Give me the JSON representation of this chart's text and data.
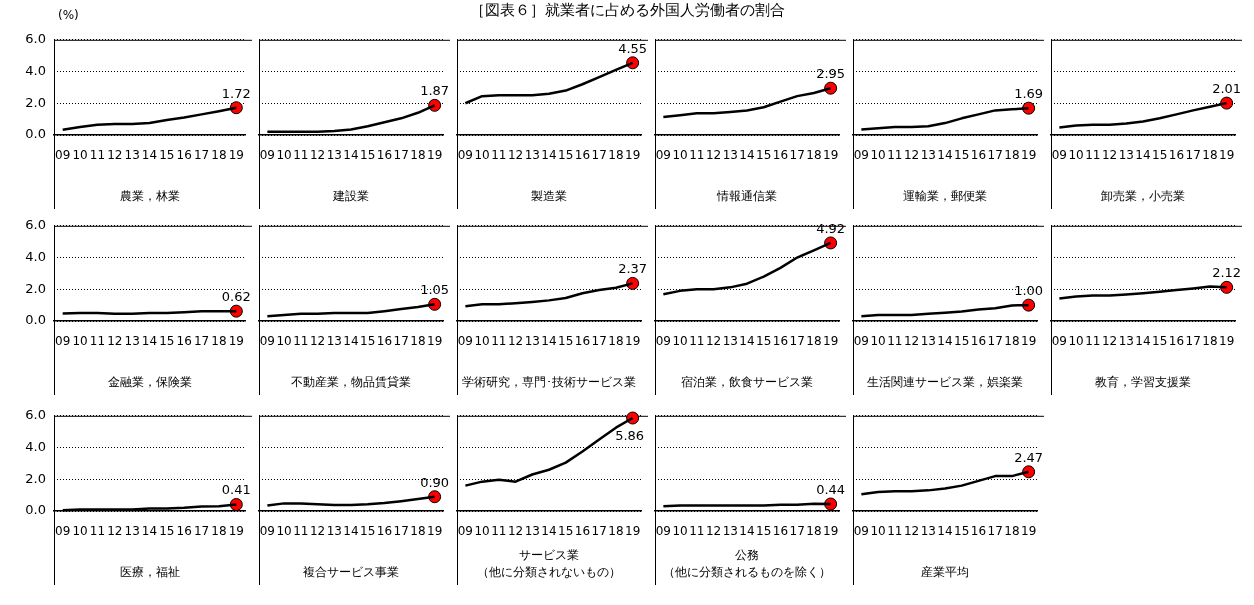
{
  "chart_data": [
    {
      "type": "line",
      "ylabel": "(%)",
      "xlabel": "農業，林業",
      "categories": [
        "09",
        "10",
        "11",
        "12",
        "13",
        "14",
        "15",
        "16",
        "17",
        "18",
        "19"
      ],
      "ylim": [
        0,
        6
      ],
      "yticks": [
        {
          "value": 0,
          "label": "0.0"
        },
        {
          "value": 2,
          "label": "2.0"
        },
        {
          "value": 4,
          "label": "4.0"
        },
        {
          "value": 6,
          "label": "6.0"
        }
      ],
      "grid": "y",
      "series": [
        {
          "type": "line",
          "color": "#000000",
          "marker": "none",
          "values": [
            0.33,
            0.5,
            0.65,
            0.7,
            0.7,
            0.75,
            0.95,
            1.1,
            1.3,
            1.5,
            1.72
          ]
        },
        {
          "type": "scatter",
          "color": "#ff0000",
          "marker": "circle",
          "x": [
            "19"
          ],
          "values": [
            1.72
          ],
          "value_labels": [
            "1.72"
          ]
        }
      ]
    },
    {
      "type": "line",
      "xlabel": "建設業",
      "categories": [
        "09",
        "10",
        "11",
        "12",
        "13",
        "14",
        "15",
        "16",
        "17",
        "18",
        "19"
      ],
      "ylim": [
        0,
        6
      ],
      "yticks": [
        {
          "value": 0,
          "label": null
        },
        {
          "value": 2,
          "label": null
        },
        {
          "value": 4,
          "label": null
        },
        {
          "value": 6,
          "label": null
        }
      ],
      "grid": "y",
      "tick_labels": "x",
      "series": [
        {
          "type": "line",
          "color": "#000000",
          "marker": "none",
          "values": [
            0.2,
            0.2,
            0.2,
            0.2,
            0.25,
            0.35,
            0.55,
            0.8,
            1.05,
            1.4,
            1.87
          ]
        },
        {
          "type": "scatter",
          "color": "#ff0000",
          "marker": "circle",
          "x": [
            "19"
          ],
          "values": [
            1.87
          ],
          "value_labels": [
            "1.87"
          ]
        }
      ]
    },
    {
      "type": "line",
      "title": "［図表６］就業者に占める外国人労働者の割合",
      "xlabel": "製造業",
      "categories": [
        "09",
        "10",
        "11",
        "12",
        "13",
        "14",
        "15",
        "16",
        "17",
        "18",
        "19"
      ],
      "ylim": [
        0,
        6
      ],
      "yticks": [
        {
          "value": 0,
          "label": null
        },
        {
          "value": 2,
          "label": null
        },
        {
          "value": 4,
          "label": null
        },
        {
          "value": 6,
          "label": null
        }
      ],
      "grid": "y",
      "tick_labels": "x",
      "series": [
        {
          "type": "line",
          "color": "#000000",
          "marker": "none",
          "values": [
            2.0,
            2.45,
            2.5,
            2.5,
            2.5,
            2.6,
            2.8,
            3.2,
            3.65,
            4.1,
            4.55
          ]
        },
        {
          "type": "scatter",
          "color": "#ff0000",
          "marker": "circle",
          "x": [
            "19"
          ],
          "values": [
            4.55
          ],
          "value_labels": [
            "4.55"
          ]
        }
      ]
    },
    {
      "type": "line",
      "xlabel": "情報通信業",
      "categories": [
        "09",
        "10",
        "11",
        "12",
        "13",
        "14",
        "15",
        "16",
        "17",
        "18",
        "19"
      ],
      "ylim": [
        0,
        6
      ],
      "yticks": [
        {
          "value": 0,
          "label": null
        },
        {
          "value": 2,
          "label": null
        },
        {
          "value": 4,
          "label": null
        },
        {
          "value": 6,
          "label": null
        }
      ],
      "grid": "y",
      "tick_labels": "x",
      "series": [
        {
          "type": "line",
          "color": "#000000",
          "marker": "none",
          "values": [
            1.14,
            1.25,
            1.37,
            1.37,
            1.45,
            1.55,
            1.75,
            2.1,
            2.45,
            2.65,
            2.95
          ]
        },
        {
          "type": "scatter",
          "color": "#ff0000",
          "marker": "circle",
          "x": [
            "19"
          ],
          "values": [
            2.95
          ],
          "value_labels": [
            "2.95"
          ]
        }
      ]
    },
    {
      "type": "line",
      "xlabel": "運輸業，郵便業",
      "categories": [
        "09",
        "10",
        "11",
        "12",
        "13",
        "14",
        "15",
        "16",
        "17",
        "18",
        "19"
      ],
      "ylim": [
        0,
        6
      ],
      "yticks": [
        {
          "value": 0,
          "label": null
        },
        {
          "value": 2,
          "label": null
        },
        {
          "value": 4,
          "label": null
        },
        {
          "value": 6,
          "label": null
        }
      ],
      "grid": "y",
      "tick_labels": "x",
      "series": [
        {
          "type": "line",
          "color": "#000000",
          "marker": "none",
          "values": [
            0.35,
            0.42,
            0.5,
            0.5,
            0.55,
            0.75,
            1.05,
            1.3,
            1.55,
            1.62,
            1.69
          ]
        },
        {
          "type": "scatter",
          "color": "#ff0000",
          "marker": "circle",
          "x": [
            "19"
          ],
          "values": [
            1.69
          ],
          "value_labels": [
            "1.69"
          ]
        }
      ]
    },
    {
      "type": "line",
      "xlabel": "卸売業，小売業",
      "categories": [
        "09",
        "10",
        "11",
        "12",
        "13",
        "14",
        "15",
        "16",
        "17",
        "18",
        "19"
      ],
      "ylim": [
        0,
        6
      ],
      "yticks": [
        {
          "value": 0,
          "label": null
        },
        {
          "value": 2,
          "label": null
        },
        {
          "value": 4,
          "label": null
        },
        {
          "value": 6,
          "label": null
        }
      ],
      "grid": "y",
      "tick_labels": "x",
      "series": [
        {
          "type": "line",
          "color": "#000000",
          "marker": "none",
          "values": [
            0.48,
            0.6,
            0.65,
            0.65,
            0.72,
            0.85,
            1.05,
            1.3,
            1.55,
            1.78,
            2.01
          ]
        },
        {
          "type": "scatter",
          "color": "#ff0000",
          "marker": "circle",
          "x": [
            "19"
          ],
          "values": [
            2.01
          ],
          "value_labels": [
            "2.01"
          ]
        }
      ]
    },
    {
      "type": "line",
      "xlabel": "金融業，保険業",
      "categories": [
        "09",
        "10",
        "11",
        "12",
        "13",
        "14",
        "15",
        "16",
        "17",
        "18",
        "19"
      ],
      "ylim": [
        0,
        6
      ],
      "yticks": [
        {
          "value": 0,
          "label": "0.0"
        },
        {
          "value": 2,
          "label": "2.0"
        },
        {
          "value": 4,
          "label": "4.0"
        },
        {
          "value": 6,
          "label": "6.0"
        }
      ],
      "grid": "y",
      "series": [
        {
          "type": "line",
          "color": "#000000",
          "marker": "none",
          "values": [
            0.47,
            0.5,
            0.5,
            0.45,
            0.45,
            0.5,
            0.5,
            0.55,
            0.62,
            0.62,
            0.62
          ]
        },
        {
          "type": "scatter",
          "color": "#ff0000",
          "marker": "circle",
          "x": [
            "19"
          ],
          "values": [
            0.62
          ],
          "value_labels": [
            "0.62"
          ]
        }
      ]
    },
    {
      "type": "line",
      "xlabel": "不動産業，物品賃貸業",
      "categories": [
        "09",
        "10",
        "11",
        "12",
        "13",
        "14",
        "15",
        "16",
        "17",
        "18",
        "19"
      ],
      "ylim": [
        0,
        6
      ],
      "yticks": [
        {
          "value": 0,
          "label": null
        },
        {
          "value": 2,
          "label": null
        },
        {
          "value": 4,
          "label": null
        },
        {
          "value": 6,
          "label": null
        }
      ],
      "grid": "y",
      "tick_labels": "x",
      "series": [
        {
          "type": "line",
          "color": "#000000",
          "marker": "none",
          "values": [
            0.3,
            0.38,
            0.45,
            0.45,
            0.5,
            0.5,
            0.5,
            0.62,
            0.75,
            0.88,
            1.05
          ]
        },
        {
          "type": "scatter",
          "color": "#ff0000",
          "marker": "circle",
          "x": [
            "19"
          ],
          "values": [
            1.05
          ],
          "value_labels": [
            "1.05"
          ]
        }
      ]
    },
    {
      "type": "line",
      "xlabel": "学術研究，専門･技術サービス業",
      "categories": [
        "09",
        "10",
        "11",
        "12",
        "13",
        "14",
        "15",
        "16",
        "17",
        "18",
        "19"
      ],
      "ylim": [
        0,
        6
      ],
      "yticks": [
        {
          "value": 0,
          "label": null
        },
        {
          "value": 2,
          "label": null
        },
        {
          "value": 4,
          "label": null
        },
        {
          "value": 6,
          "label": null
        }
      ],
      "grid": "y",
      "tick_labels": "x",
      "series": [
        {
          "type": "line",
          "color": "#000000",
          "marker": "none",
          "values": [
            0.93,
            1.05,
            1.05,
            1.12,
            1.2,
            1.3,
            1.45,
            1.75,
            1.95,
            2.1,
            2.37
          ]
        },
        {
          "type": "scatter",
          "color": "#ff0000",
          "marker": "circle",
          "x": [
            "19"
          ],
          "values": [
            2.37
          ],
          "value_labels": [
            "2.37"
          ]
        }
      ]
    },
    {
      "type": "line",
      "xlabel": "宿泊業，飲食サービス業",
      "categories": [
        "09",
        "10",
        "11",
        "12",
        "13",
        "14",
        "15",
        "16",
        "17",
        "18",
        "19"
      ],
      "ylim": [
        0,
        6
      ],
      "yticks": [
        {
          "value": 0,
          "label": null
        },
        {
          "value": 2,
          "label": null
        },
        {
          "value": 4,
          "label": null
        },
        {
          "value": 6,
          "label": null
        }
      ],
      "grid": "y",
      "tick_labels": "x",
      "series": [
        {
          "type": "line",
          "color": "#000000",
          "marker": "none",
          "values": [
            1.68,
            1.9,
            2.0,
            2.0,
            2.12,
            2.35,
            2.8,
            3.35,
            4.0,
            4.45,
            4.92
          ]
        },
        {
          "type": "scatter",
          "color": "#ff0000",
          "marker": "circle",
          "x": [
            "19"
          ],
          "values": [
            4.92
          ],
          "value_labels": [
            "4.92"
          ]
        }
      ]
    },
    {
      "type": "line",
      "xlabel": "生活関連サービス業，娯楽業",
      "categories": [
        "09",
        "10",
        "11",
        "12",
        "13",
        "14",
        "15",
        "16",
        "17",
        "18",
        "19"
      ],
      "ylim": [
        0,
        6
      ],
      "yticks": [
        {
          "value": 0,
          "label": null
        },
        {
          "value": 2,
          "label": null
        },
        {
          "value": 4,
          "label": null
        },
        {
          "value": 6,
          "label": null
        }
      ],
      "grid": "y",
      "tick_labels": "x",
      "series": [
        {
          "type": "line",
          "color": "#000000",
          "marker": "none",
          "values": [
            0.3,
            0.38,
            0.38,
            0.38,
            0.45,
            0.52,
            0.6,
            0.72,
            0.8,
            0.98,
            1.0
          ]
        },
        {
          "type": "scatter",
          "color": "#ff0000",
          "marker": "circle",
          "x": [
            "19"
          ],
          "values": [
            1.0
          ],
          "value_labels": [
            "1.00"
          ]
        }
      ]
    },
    {
      "type": "line",
      "xlabel": "教育，学習支援業",
      "categories": [
        "09",
        "10",
        "11",
        "12",
        "13",
        "14",
        "15",
        "16",
        "17",
        "18",
        "19"
      ],
      "ylim": [
        0,
        6
      ],
      "yticks": [
        {
          "value": 0,
          "label": null
        },
        {
          "value": 2,
          "label": null
        },
        {
          "value": 4,
          "label": null
        },
        {
          "value": 6,
          "label": null
        }
      ],
      "grid": "y",
      "tick_labels": "x",
      "series": [
        {
          "type": "line",
          "color": "#000000",
          "marker": "none",
          "values": [
            1.42,
            1.55,
            1.6,
            1.6,
            1.67,
            1.75,
            1.85,
            1.95,
            2.05,
            2.17,
            2.12
          ]
        },
        {
          "type": "scatter",
          "color": "#ff0000",
          "marker": "circle",
          "x": [
            "19"
          ],
          "values": [
            2.12
          ],
          "value_labels": [
            "2.12"
          ]
        }
      ]
    },
    {
      "type": "line",
      "xlabel": "医療，福祉",
      "categories": [
        "09",
        "10",
        "11",
        "12",
        "13",
        "14",
        "15",
        "16",
        "17",
        "18",
        "19"
      ],
      "ylim": [
        0,
        6
      ],
      "yticks": [
        {
          "value": 0,
          "label": "0.0"
        },
        {
          "value": 2,
          "label": "2.0"
        },
        {
          "value": 4,
          "label": "4.0"
        },
        {
          "value": 6,
          "label": "6.0"
        }
      ],
      "grid": "y",
      "series": [
        {
          "type": "line",
          "color": "#000000",
          "marker": "none",
          "values": [
            0.05,
            0.1,
            0.1,
            0.1,
            0.1,
            0.15,
            0.15,
            0.2,
            0.28,
            0.3,
            0.41
          ]
        },
        {
          "type": "scatter",
          "color": "#ff0000",
          "marker": "circle",
          "x": [
            "19"
          ],
          "values": [
            0.41
          ],
          "value_labels": [
            "0.41"
          ]
        }
      ]
    },
    {
      "type": "line",
      "xlabel": "複合サービス事業",
      "categories": [
        "09",
        "10",
        "11",
        "12",
        "13",
        "14",
        "15",
        "16",
        "17",
        "18",
        "19"
      ],
      "ylim": [
        0,
        6
      ],
      "yticks": [
        {
          "value": 0,
          "label": null
        },
        {
          "value": 2,
          "label": null
        },
        {
          "value": 4,
          "label": null
        },
        {
          "value": 6,
          "label": null
        }
      ],
      "grid": "y",
      "tick_labels": "x",
      "series": [
        {
          "type": "line",
          "color": "#000000",
          "marker": "none",
          "values": [
            0.35,
            0.48,
            0.48,
            0.42,
            0.38,
            0.38,
            0.42,
            0.5,
            0.62,
            0.75,
            0.9
          ]
        },
        {
          "type": "scatter",
          "color": "#ff0000",
          "marker": "circle",
          "x": [
            "19"
          ],
          "values": [
            0.9
          ],
          "value_labels": [
            "0.90"
          ]
        }
      ]
    },
    {
      "type": "line",
      "xlabel": "サービス業（他に分類されないもの）",
      "categories": [
        "09",
        "10",
        "11",
        "12",
        "13",
        "14",
        "15",
        "16",
        "17",
        "18",
        "19"
      ],
      "ylim": [
        0,
        6
      ],
      "yticks": [
        {
          "value": 0,
          "label": null
        },
        {
          "value": 2,
          "label": null
        },
        {
          "value": 4,
          "label": null
        },
        {
          "value": 6,
          "label": null
        }
      ],
      "grid": "y",
      "tick_labels": "x",
      "series": [
        {
          "type": "line",
          "color": "#000000",
          "marker": "none",
          "values": [
            1.6,
            1.85,
            1.97,
            1.85,
            2.3,
            2.6,
            3.05,
            3.75,
            4.5,
            5.25,
            5.86
          ]
        },
        {
          "type": "scatter",
          "color": "#ff0000",
          "marker": "circle",
          "x": [
            "19"
          ],
          "values": [
            5.86
          ],
          "value_labels": [
            "5.86"
          ]
        }
      ]
    },
    {
      "type": "line",
      "xlabel": "公務（他に分類されるものを除く）",
      "categories": [
        "09",
        "10",
        "11",
        "12",
        "13",
        "14",
        "15",
        "16",
        "17",
        "18",
        "19"
      ],
      "ylim": [
        0,
        6
      ],
      "yticks": [
        {
          "value": 0,
          "label": null
        },
        {
          "value": 2,
          "label": null
        },
        {
          "value": 4,
          "label": null
        },
        {
          "value": 6,
          "label": null
        }
      ],
      "grid": "y",
      "tick_labels": "x",
      "series": [
        {
          "type": "line",
          "color": "#000000",
          "marker": "none",
          "values": [
            0.3,
            0.35,
            0.35,
            0.35,
            0.35,
            0.35,
            0.35,
            0.4,
            0.4,
            0.45,
            0.44
          ]
        },
        {
          "type": "scatter",
          "color": "#ff0000",
          "marker": "circle",
          "x": [
            "19"
          ],
          "values": [
            0.44
          ],
          "value_labels": [
            "0.44"
          ]
        }
      ]
    },
    {
      "type": "line",
      "xlabel": "産業平均",
      "categories": [
        "09",
        "10",
        "11",
        "12",
        "13",
        "14",
        "15",
        "16",
        "17",
        "18",
        "19"
      ],
      "ylim": [
        0,
        6
      ],
      "yticks": [
        {
          "value": 0,
          "label": null
        },
        {
          "value": 2,
          "label": null
        },
        {
          "value": 4,
          "label": null
        },
        {
          "value": 6,
          "label": null
        }
      ],
      "grid": "y",
      "tick_labels": "x",
      "series": [
        {
          "type": "line",
          "color": "#000000",
          "marker": "none",
          "values": [
            1.05,
            1.2,
            1.25,
            1.25,
            1.3,
            1.42,
            1.6,
            1.9,
            2.2,
            2.2,
            2.47
          ]
        },
        {
          "type": "scatter",
          "color": "#ff0000",
          "marker": "circle",
          "x": [
            "19"
          ],
          "values": [
            2.47
          ],
          "value_labels": [
            "2.47"
          ]
        }
      ]
    }
  ]
}
